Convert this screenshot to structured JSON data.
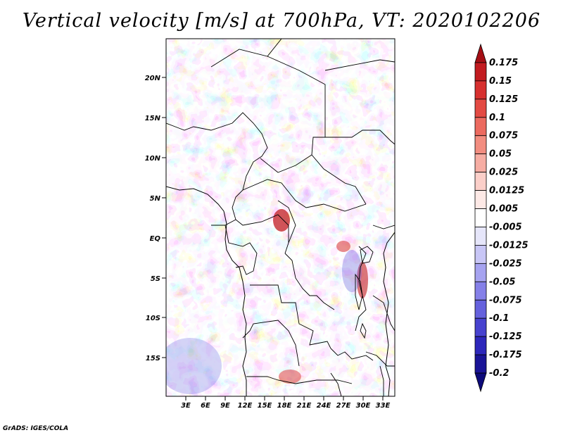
{
  "title": "Vertical velocity [m/s] at 700hPa, VT: 2020102206",
  "footer": "GrADS: IGES/COLA",
  "map": {
    "lat_labels": [
      "20N",
      "15N",
      "10N",
      "5N",
      "EQ",
      "5S",
      "10S",
      "15S"
    ],
    "lon_labels": [
      "3E",
      "6E",
      "9E",
      "12E",
      "15E",
      "18E",
      "21E",
      "24E",
      "27E",
      "30E",
      "33E"
    ]
  },
  "colorbar": {
    "levels": [
      "0.175",
      "0.15",
      "0.125",
      "0.1",
      "0.075",
      "0.05",
      "0.025",
      "0.0125",
      "0.005",
      "-0.005",
      "-0.0125",
      "-0.025",
      "-0.05",
      "-0.075",
      "-0.1",
      "-0.125",
      "-0.175",
      "-0.2"
    ],
    "colors": [
      "#a50f15",
      "#c21b20",
      "#d7302f",
      "#e34a43",
      "#ec6a5f",
      "#f28d80",
      "#f6ada3",
      "#fbcfc9",
      "#fde9e6",
      "#ffffff",
      "#e6e6fa",
      "#c8c6f6",
      "#a6a3f0",
      "#8580e8",
      "#6561dd",
      "#4742cf",
      "#2d27bb",
      "#1a1497",
      "#0d0a7a"
    ]
  }
}
